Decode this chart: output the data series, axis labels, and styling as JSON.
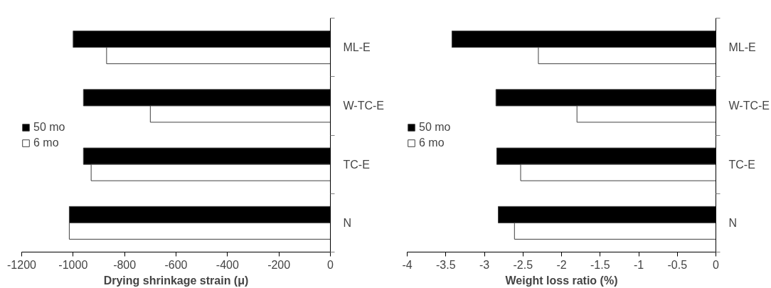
{
  "chart_data": [
    {
      "type": "bar",
      "orientation": "horizontal",
      "xlabel": "Drying shrinkage strain (μ)",
      "categories": [
        "ML-E",
        "W-TC-E",
        "TC-E",
        "N"
      ],
      "series": [
        {
          "name": "50 mo",
          "color": "#000000",
          "values": [
            -1000,
            -960,
            -960,
            -1015
          ]
        },
        {
          "name": "6 mo",
          "color": "#ffffff",
          "values": [
            -870,
            -700,
            -930,
            -1015
          ]
        }
      ],
      "xlim": [
        -1200,
        0
      ],
      "xticks": [
        -1200,
        -1000,
        -800,
        -600,
        -400,
        -200,
        0
      ],
      "grid": false,
      "legend": "left"
    },
    {
      "type": "bar",
      "orientation": "horizontal",
      "xlabel": "Weight loss ratio (%)",
      "categories": [
        "ML-E",
        "W-TC-E",
        "TC-E",
        "N"
      ],
      "series": [
        {
          "name": "50 mo",
          "color": "#000000",
          "values": [
            -3.42,
            -2.85,
            -2.84,
            -2.82
          ]
        },
        {
          "name": "6 mo",
          "color": "#ffffff",
          "values": [
            -2.3,
            -1.8,
            -2.53,
            -2.61
          ]
        }
      ],
      "xlim": [
        -4,
        0
      ],
      "xticks": [
        -4,
        -3.5,
        -3,
        -2.5,
        -2,
        -1.5,
        -1,
        -0.5,
        0
      ],
      "grid": false,
      "legend": "left"
    }
  ]
}
